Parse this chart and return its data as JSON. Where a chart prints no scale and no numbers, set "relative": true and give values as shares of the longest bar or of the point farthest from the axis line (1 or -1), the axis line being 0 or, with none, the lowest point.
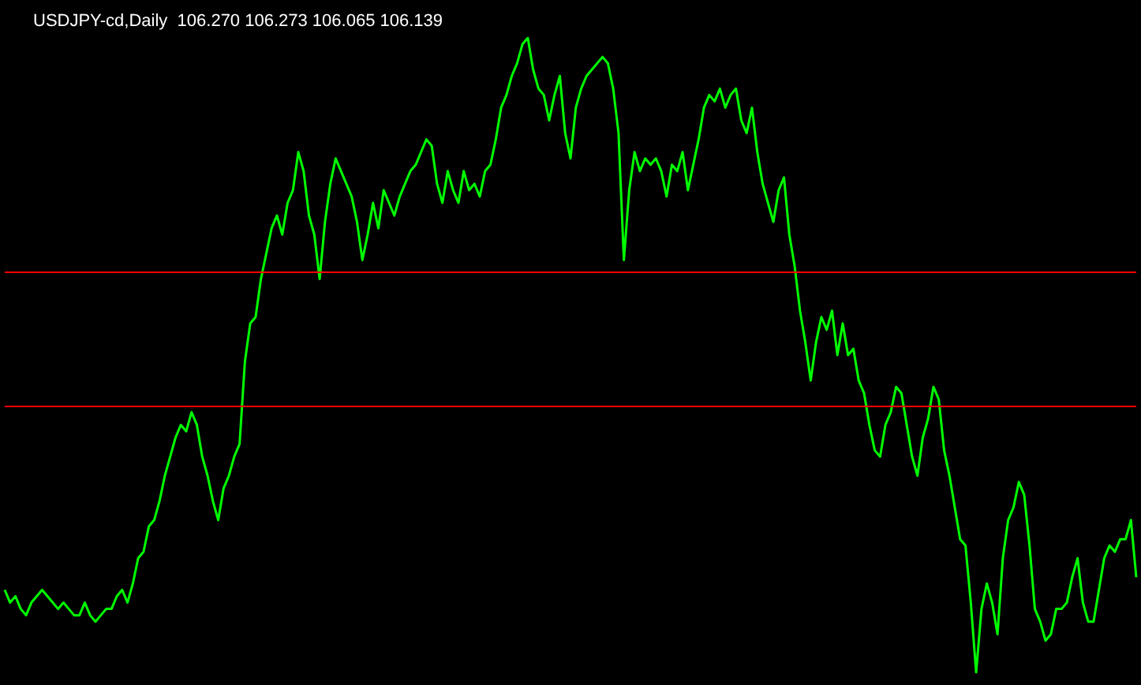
{
  "chart_data": {
    "type": "line",
    "title": "USDJPY-cd,Daily  106.270 106.273 106.065 106.139",
    "relative": true,
    "grid": false,
    "marker": "none",
    "categories": [
      null,
      null,
      null,
      null,
      null,
      null,
      null,
      null,
      null,
      null,
      null,
      null,
      null,
      null,
      null,
      null,
      null,
      null,
      null,
      null,
      null,
      null,
      null,
      null,
      null,
      null,
      null,
      null,
      null,
      null,
      null,
      null,
      null,
      null,
      null,
      null,
      null,
      null,
      null,
      null,
      null,
      null,
      null,
      null,
      null,
      null,
      null,
      null,
      null,
      null,
      null,
      null,
      null,
      null,
      null,
      null,
      null,
      null,
      null,
      null,
      null,
      null,
      null,
      null,
      null,
      null,
      null,
      null,
      null,
      null,
      null,
      null,
      null,
      null,
      null,
      null,
      null,
      null,
      null,
      null,
      null,
      null,
      null,
      null,
      null,
      null,
      null,
      null,
      null,
      null,
      null,
      null,
      null,
      null,
      null,
      null,
      null,
      null,
      null,
      null,
      null,
      null,
      null,
      null,
      null,
      null,
      null,
      null,
      null,
      null,
      null,
      null,
      null,
      null,
      null,
      null,
      null,
      null,
      null,
      null,
      null,
      null,
      null,
      null,
      null,
      null,
      null,
      null,
      null,
      null,
      null,
      null,
      null,
      null,
      null,
      null,
      null,
      null,
      null,
      null,
      null,
      null,
      null,
      null,
      null,
      null,
      null,
      null,
      null,
      null,
      null,
      null,
      null,
      null,
      null,
      null,
      null,
      null,
      null,
      null,
      null,
      null,
      null,
      null,
      null,
      null,
      null,
      null,
      null,
      null,
      null,
      null,
      null,
      null,
      null,
      null,
      null,
      null,
      null,
      null,
      null,
      null,
      null,
      null,
      null,
      null,
      null,
      null,
      null,
      null,
      null,
      null,
      null,
      null,
      null,
      null,
      null,
      null,
      null,
      null,
      null,
      null,
      null,
      null,
      null,
      null,
      null,
      null,
      null,
      null,
      null,
      null,
      null
    ],
    "series": [
      {
        "color": "#00ff00",
        "values": [
          0.13,
          0.11,
          0.12,
          0.1,
          0.09,
          0.11,
          0.12,
          0.13,
          0.12,
          0.11,
          0.1,
          0.11,
          0.1,
          0.09,
          0.09,
          0.11,
          0.09,
          0.08,
          0.09,
          0.1,
          0.1,
          0.12,
          0.13,
          0.11,
          0.14,
          0.18,
          0.19,
          0.23,
          0.24,
          0.27,
          0.31,
          0.34,
          0.37,
          0.39,
          0.38,
          0.41,
          0.39,
          0.34,
          0.31,
          0.27,
          0.24,
          0.29,
          0.31,
          0.34,
          0.36,
          0.49,
          0.55,
          0.56,
          0.62,
          0.66,
          0.7,
          0.72,
          0.69,
          0.74,
          0.76,
          0.82,
          0.79,
          0.72,
          0.69,
          0.62,
          0.71,
          0.77,
          0.81,
          0.79,
          0.77,
          0.75,
          0.71,
          0.65,
          0.69,
          0.74,
          0.7,
          0.76,
          0.74,
          0.72,
          0.75,
          0.77,
          0.79,
          0.8,
          0.82,
          0.84,
          0.83,
          0.77,
          0.74,
          0.79,
          0.76,
          0.74,
          0.79,
          0.76,
          0.77,
          0.75,
          0.79,
          0.8,
          0.84,
          0.89,
          0.91,
          0.94,
          0.96,
          0.99,
          1,
          0.95,
          0.92,
          0.91,
          0.87,
          0.91,
          0.94,
          0.85,
          0.81,
          0.89,
          0.92,
          0.94,
          0.95,
          0.96,
          0.97,
          0.96,
          0.92,
          0.85,
          0.65,
          0.76,
          0.82,
          0.79,
          0.81,
          0.8,
          0.81,
          0.79,
          0.75,
          0.8,
          0.79,
          0.82,
          0.76,
          0.8,
          0.84,
          0.89,
          0.91,
          0.9,
          0.92,
          0.89,
          0.91,
          0.92,
          0.87,
          0.85,
          0.89,
          0.82,
          0.77,
          0.74,
          0.71,
          0.76,
          0.78,
          0.69,
          0.64,
          0.57,
          0.52,
          0.46,
          0.52,
          0.56,
          0.54,
          0.57,
          0.5,
          0.55,
          0.5,
          0.51,
          0.46,
          0.44,
          0.39,
          0.35,
          0.34,
          0.39,
          0.41,
          0.45,
          0.44,
          0.39,
          0.34,
          0.31,
          0.37,
          0.4,
          0.45,
          0.43,
          0.35,
          0.31,
          0.26,
          0.21,
          0.2,
          0.11,
          0,
          0.1,
          0.14,
          0.11,
          0.06,
          0.18,
          0.24,
          0.26,
          0.3,
          0.28,
          0.2,
          0.1,
          0.08,
          0.05,
          0.06,
          0.1,
          0.1,
          0.11,
          0.15,
          0.18,
          0.11,
          0.08,
          0.08,
          0.13,
          0.18,
          0.2,
          0.19,
          0.21,
          0.21,
          0.24,
          0.15
        ]
      }
    ],
    "ref_lines": [
      {
        "axis": "y",
        "value": 0.63,
        "color": "#ff0000"
      },
      {
        "axis": "y",
        "value": 0.42,
        "color": "#ff0000"
      }
    ]
  }
}
